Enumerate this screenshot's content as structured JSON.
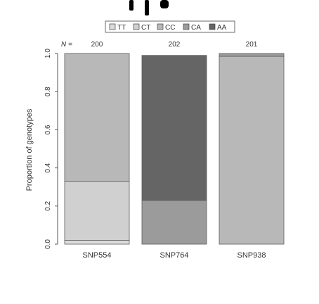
{
  "chart_data": {
    "type": "bar",
    "stacked": true,
    "title": "",
    "xlabel": "",
    "ylabel": "Proportion of genotypes",
    "ylim": [
      0.0,
      1.0
    ],
    "yticks": [
      "0.0",
      "0.2",
      "0.4",
      "0.6",
      "0.8",
      "1.0"
    ],
    "categories": [
      "SNP554",
      "SNP764",
      "SNP938"
    ],
    "n_prefix": "N =",
    "n_values": [
      "200",
      "202",
      "201"
    ],
    "legend_position": "top",
    "series": [
      {
        "name": "TT",
        "color": "#dcdcdc",
        "values": [
          0.02,
          0.0,
          0.0
        ]
      },
      {
        "name": "CT",
        "color": "#d0d0d0",
        "values": [
          0.31,
          0.0,
          0.0
        ]
      },
      {
        "name": "CC",
        "color": "#b8b8b8",
        "values": [
          0.67,
          0.0,
          0.985
        ]
      },
      {
        "name": "CA",
        "color": "#9b9b9b",
        "values": [
          0.0,
          0.23,
          0.015
        ]
      },
      {
        "name": "AA",
        "color": "#656565",
        "values": [
          0.0,
          0.76,
          0.0
        ]
      }
    ],
    "grid": false
  }
}
